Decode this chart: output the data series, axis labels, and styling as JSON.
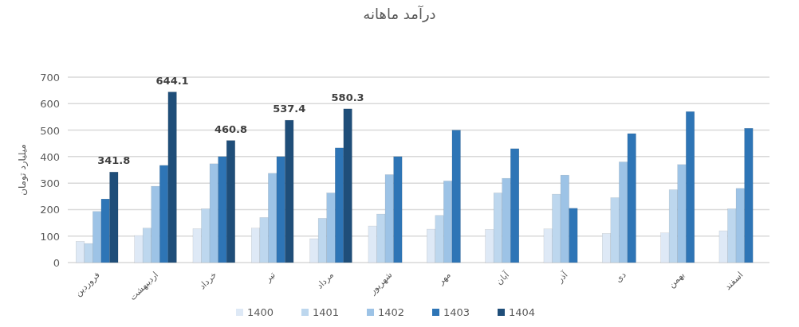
{
  "chart_data": {
    "type": "bar",
    "title": "درآمد ماهانه",
    "ylabel": "میلیارد تومان",
    "categories": [
      "فروردین",
      "اردیبهشت",
      "خرداد",
      "تیر",
      "مرداد",
      "شهریور",
      "مهر",
      "آبان",
      "آذر",
      "دی",
      "بهمن",
      "اسفند"
    ],
    "series": [
      {
        "name": "1400",
        "color": "#dee9f6",
        "values": [
          80,
          102,
          128,
          130,
          90,
          138,
          126,
          125,
          127,
          110,
          112,
          120
        ]
      },
      {
        "name": "1401",
        "color": "#bdd7ee",
        "values": [
          72,
          130,
          203,
          170,
          167,
          183,
          178,
          263,
          258,
          245,
          275,
          203
        ]
      },
      {
        "name": "1402",
        "color": "#9dc3e6",
        "values": [
          193,
          288,
          373,
          337,
          263,
          332,
          308,
          318,
          330,
          380,
          370,
          280
        ]
      },
      {
        "name": "1403",
        "color": "#2e75b6",
        "values": [
          240,
          367,
          400,
          400,
          433,
          400,
          500,
          430,
          205,
          487,
          570,
          507
        ]
      },
      {
        "name": "1404",
        "color": "#1f4e79",
        "values": [
          341.8,
          644.1,
          460.8,
          537.4,
          580.3,
          null,
          null,
          null,
          null,
          null,
          null,
          null
        ],
        "value_labels": [
          "341.8",
          "644.1",
          "460.8",
          "537.4",
          "580.3",
          null,
          null,
          null,
          null,
          null,
          null,
          null
        ]
      }
    ],
    "ylim": [
      0,
      700
    ],
    "yticks": [
      0,
      100,
      200,
      300,
      400,
      500,
      600,
      700
    ],
    "grid": "y",
    "legend": "bottom"
  }
}
